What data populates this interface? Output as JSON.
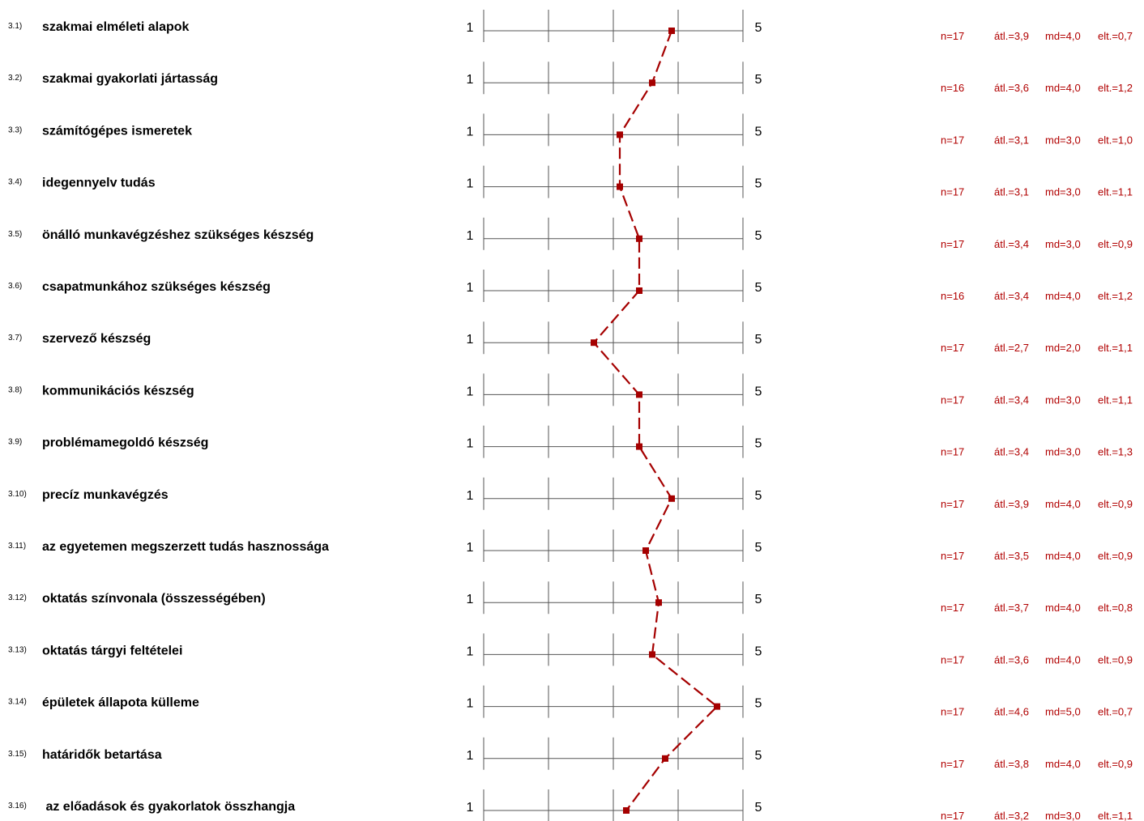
{
  "chart_data": {
    "type": "line",
    "scale": {
      "min": 1,
      "max": 5,
      "min_label": "1",
      "max_label": "5"
    },
    "colors": {
      "series": "#a50000",
      "stats": "#b10000",
      "grid": "#555555",
      "text": "#000000"
    },
    "items": [
      {
        "num": "3.1)",
        "label": "szakmai elméleti alapok",
        "value": 3.9,
        "n": "n=17",
        "atl": "átl.=3,9",
        "md": "md=4,0",
        "elt": "elt.=0,7"
      },
      {
        "num": "3.2)",
        "label": "szakmai gyakorlati jártasság",
        "value": 3.6,
        "n": "n=16",
        "atl": "átl.=3,6",
        "md": "md=4,0",
        "elt": "elt.=1,2"
      },
      {
        "num": "3.3)",
        "label": "számítógépes ismeretek",
        "value": 3.1,
        "n": "n=17",
        "atl": "átl.=3,1",
        "md": "md=3,0",
        "elt": "elt.=1,0"
      },
      {
        "num": "3.4)",
        "label": "idegennyelv tudás",
        "value": 3.1,
        "n": "n=17",
        "atl": "átl.=3,1",
        "md": "md=3,0",
        "elt": "elt.=1,1"
      },
      {
        "num": "3.5)",
        "label": "önálló munkavégzéshez szükséges készség",
        "value": 3.4,
        "n": "n=17",
        "atl": "átl.=3,4",
        "md": "md=3,0",
        "elt": "elt.=0,9"
      },
      {
        "num": "3.6)",
        "label": "csapatmunkához szükséges készség",
        "value": 3.4,
        "n": "n=16",
        "atl": "átl.=3,4",
        "md": "md=4,0",
        "elt": "elt.=1,2"
      },
      {
        "num": "3.7)",
        "label": "szervező készség",
        "value": 2.7,
        "n": "n=17",
        "atl": "átl.=2,7",
        "md": "md=2,0",
        "elt": "elt.=1,1"
      },
      {
        "num": "3.8)",
        "label": "kommunikációs készség",
        "value": 3.4,
        "n": "n=17",
        "atl": "átl.=3,4",
        "md": "md=3,0",
        "elt": "elt.=1,1"
      },
      {
        "num": "3.9)",
        "label": "problémamegoldó készség",
        "value": 3.4,
        "n": "n=17",
        "atl": "átl.=3,4",
        "md": "md=3,0",
        "elt": "elt.=1,3"
      },
      {
        "num": "3.10)",
        "label": "precíz munkavégzés",
        "value": 3.9,
        "n": "n=17",
        "atl": "átl.=3,9",
        "md": "md=4,0",
        "elt": "elt.=0,9"
      },
      {
        "num": "3.11)",
        "label": "az egyetemen megszerzett tudás hasznossága",
        "value": 3.5,
        "n": "n=17",
        "atl": "átl.=3,5",
        "md": "md=4,0",
        "elt": "elt.=0,9"
      },
      {
        "num": "3.12)",
        "label": "oktatás színvonala (összességében)",
        "value": 3.7,
        "n": "n=17",
        "atl": "átl.=3,7",
        "md": "md=4,0",
        "elt": "elt.=0,8"
      },
      {
        "num": "3.13)",
        "label": "oktatás tárgyi feltételei",
        "value": 3.6,
        "n": "n=17",
        "atl": "átl.=3,6",
        "md": "md=4,0",
        "elt": "elt.=0,9"
      },
      {
        "num": "3.14)",
        "label": "épületek állapota külleme",
        "value": 4.6,
        "n": "n=17",
        "atl": "átl.=4,6",
        "md": "md=5,0",
        "elt": "elt.=0,7"
      },
      {
        "num": "3.15)",
        "label": "határidők betartása",
        "value": 3.8,
        "n": "n=17",
        "atl": "átl.=3,8",
        "md": "md=4,0",
        "elt": "elt.=0,9"
      },
      {
        "num": "3.16)",
        "label": " az előadások és gyakorlatok összhangja",
        "value": 3.2,
        "n": "n=17",
        "atl": "átl.=3,2",
        "md": "md=3,0",
        "elt": "elt.=1,1"
      }
    ]
  }
}
